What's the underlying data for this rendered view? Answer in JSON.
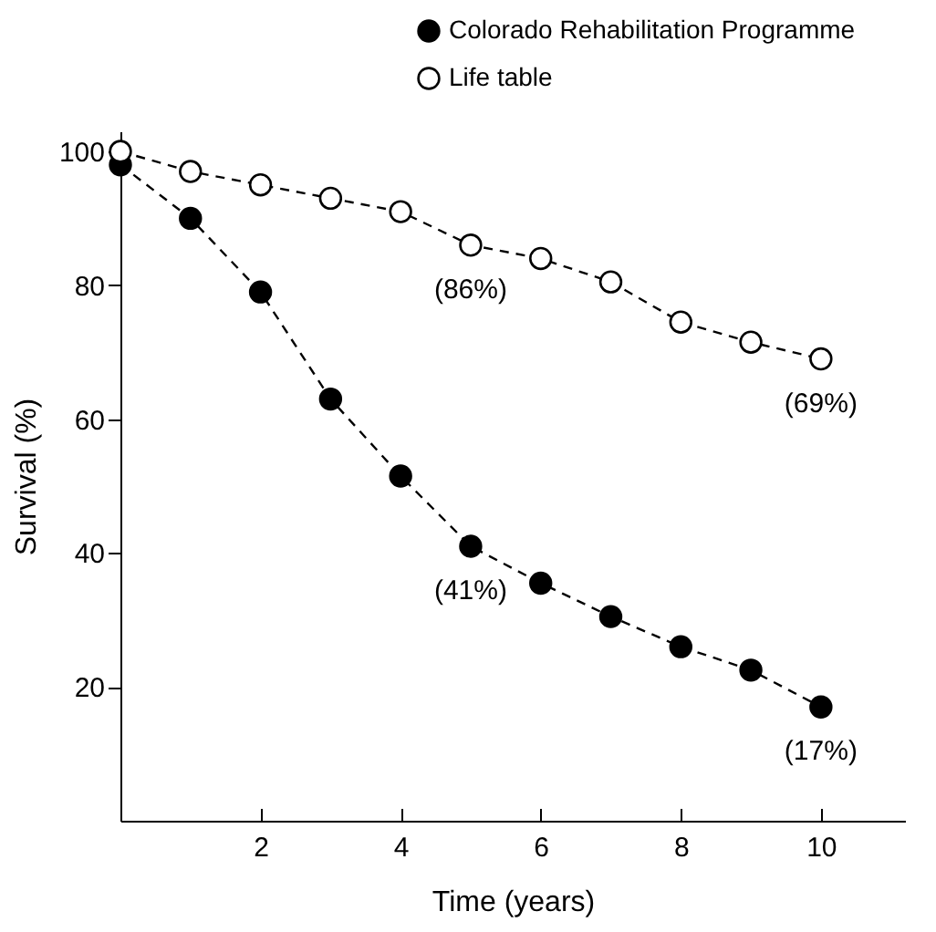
{
  "chart_data": {
    "type": "line",
    "xlabel": "Time (years)",
    "ylabel": "Survival (%)",
    "x": [
      0,
      1,
      2,
      3,
      4,
      5,
      6,
      7,
      8,
      9,
      10
    ],
    "series": [
      {
        "name": "Colorado Rehabilitation Programme",
        "color": "#000000",
        "values": [
          98,
          90,
          79,
          63,
          51.5,
          41,
          35.5,
          30.5,
          26,
          22.5,
          17
        ],
        "value_labels": [
          null,
          null,
          null,
          null,
          null,
          "(41%)",
          null,
          null,
          null,
          null,
          "(17%)"
        ]
      },
      {
        "name": "Life table",
        "color": "#ffffff",
        "values": [
          100,
          97,
          95,
          93,
          91,
          86,
          84,
          80.5,
          74.5,
          71.5,
          69
        ],
        "value_labels": [
          null,
          null,
          null,
          null,
          null,
          "(86%)",
          null,
          null,
          null,
          null,
          "(69%)"
        ]
      }
    ],
    "xlim": [
      0,
      11.2
    ],
    "xticks": [
      2,
      4,
      6,
      8,
      10
    ],
    "ylim": [
      0,
      103
    ],
    "yticks": [
      20,
      40,
      60,
      80,
      100
    ],
    "grid": false,
    "legend": "top right",
    "marker": "circle",
    "line_style": "dashed"
  }
}
